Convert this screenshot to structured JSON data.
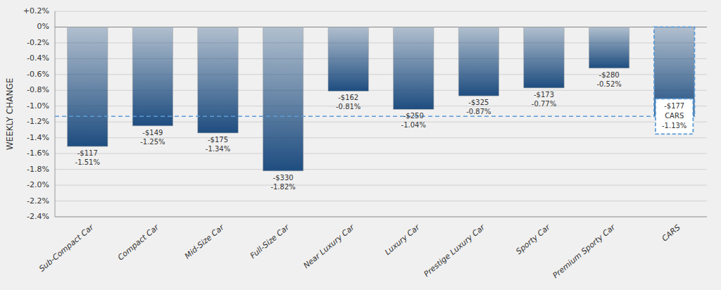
{
  "chart_data": {
    "type": "bar",
    "categories": [
      "Sub-Compact Car",
      "Compact Car",
      "Mid-Size Car",
      "Full-Size Car",
      "Near Luxury Car",
      "Luxury Car",
      "Prestige Luxury Car",
      "Sporty Car",
      "Premium Sporty Car",
      "CARS"
    ],
    "values": [
      -1.51,
      -1.25,
      -1.34,
      -1.82,
      -0.81,
      -1.04,
      -0.87,
      -0.77,
      -0.52,
      -1.13
    ],
    "value_labels": [
      "-1.51%",
      "-1.25%",
      "-1.34%",
      "-1.82%",
      "-0.81%",
      "-1.04%",
      "-0.87%",
      "-0.77%",
      "-0.52%",
      "-1.13%"
    ],
    "dollar_labels": [
      "-$117",
      "-$149",
      "-$175",
      "-$330",
      "-$162",
      "-$250",
      "-$325",
      "-$173",
      "-$280",
      "-$177"
    ],
    "reference_line": -1.13,
    "data_labels": true,
    "color": "#1e4d80",
    "ylabel": "WEEKLY CHANGE",
    "ylim": [
      -2.4,
      0.2
    ],
    "yticks": [
      {
        "value": 0.2,
        "label": "+0.2%"
      },
      {
        "value": 0.0,
        "label": "0%"
      },
      {
        "value": -0.2,
        "label": "-0.2%"
      },
      {
        "value": -0.4,
        "label": "-0.4%"
      },
      {
        "value": -0.6,
        "label": "-0.6%"
      },
      {
        "value": -0.8,
        "label": "-0.8%"
      },
      {
        "value": -1.0,
        "label": "-1.0%"
      },
      {
        "value": -1.2,
        "label": "-1.2%"
      },
      {
        "value": -1.4,
        "label": "-1.4%"
      },
      {
        "value": -1.6,
        "label": "-1.6%"
      },
      {
        "value": -1.8,
        "label": "-1.8%"
      },
      {
        "value": -2.0,
        "label": "-2.0%"
      },
      {
        "value": -2.2,
        "label": "-2.2%"
      },
      {
        "value": -2.4,
        "label": "-2.4%"
      }
    ],
    "grid": true
  }
}
